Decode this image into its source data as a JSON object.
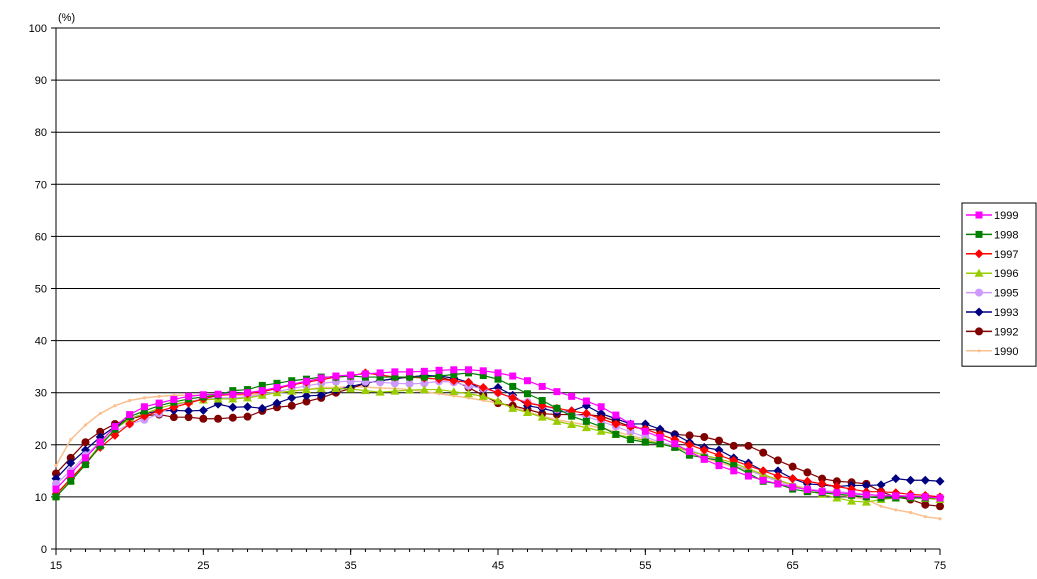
{
  "chart_data": {
    "type": "line",
    "y_unit": "(%)",
    "xlim": [
      15,
      75
    ],
    "ylim": [
      0,
      100
    ],
    "x_ticks": [
      15,
      25,
      35,
      45,
      55,
      65,
      75
    ],
    "y_ticks": [
      0,
      10,
      20,
      30,
      40,
      50,
      60,
      70,
      80,
      90,
      100
    ],
    "grid": "horizontal",
    "legend_position": "right",
    "x": [
      15,
      16,
      17,
      18,
      19,
      20,
      21,
      22,
      23,
      24,
      25,
      26,
      27,
      28,
      29,
      30,
      31,
      32,
      33,
      34,
      35,
      36,
      37,
      38,
      39,
      40,
      41,
      42,
      43,
      44,
      45,
      46,
      47,
      48,
      49,
      50,
      51,
      52,
      53,
      54,
      55,
      56,
      57,
      58,
      59,
      60,
      61,
      62,
      63,
      64,
      65,
      66,
      67,
      68,
      69,
      70,
      71,
      72,
      73,
      74,
      75
    ],
    "series": [
      {
        "name": "1999",
        "color": "#ff00ff",
        "marker": "square",
        "values": [
          11.5,
          14.5,
          17.5,
          20.5,
          23.5,
          25.8,
          27.3,
          28.0,
          28.7,
          29.3,
          29.6,
          29.7,
          29.7,
          30.0,
          30.4,
          31.0,
          31.6,
          32.2,
          32.8,
          33.2,
          33.4,
          33.6,
          33.8,
          34.0,
          34.0,
          34.1,
          34.3,
          34.4,
          34.4,
          34.2,
          33.8,
          33.2,
          32.3,
          31.2,
          30.2,
          29.3,
          28.4,
          27.3,
          25.7,
          24.0,
          22.6,
          21.4,
          20.2,
          18.7,
          17.2,
          16.0,
          15.0,
          14.0,
          13.2,
          12.5,
          11.9,
          11.4,
          11.0,
          10.8,
          10.6,
          10.4,
          10.3,
          10.2,
          10.1,
          10.0,
          9.8
        ]
      },
      {
        "name": "1998",
        "color": "#008000",
        "marker": "square",
        "values": [
          10.0,
          13.0,
          16.2,
          19.8,
          23.0,
          25.4,
          26.5,
          27.5,
          28.2,
          28.8,
          29.2,
          29.5,
          30.4,
          30.6,
          31.4,
          31.8,
          32.3,
          32.6,
          33.0,
          33.0,
          33.2,
          33.0,
          33.0,
          33.0,
          33.0,
          33.0,
          33.2,
          33.5,
          33.8,
          33.3,
          32.6,
          31.2,
          29.8,
          28.5,
          27.0,
          25.5,
          24.5,
          23.5,
          22.0,
          21.0,
          20.5,
          20.2,
          19.5,
          18.0,
          17.5,
          17.0,
          16.0,
          14.5,
          13.0,
          12.5,
          11.5,
          11.0,
          10.8,
          10.5,
          10.3,
          10.0,
          9.8,
          9.8,
          9.8,
          9.8,
          9.8
        ]
      },
      {
        "name": "1997",
        "color": "#ff0000",
        "marker": "diamond",
        "values": [
          10.5,
          13.5,
          16.5,
          19.5,
          21.8,
          24.0,
          25.5,
          26.5,
          27.2,
          28.0,
          28.8,
          29.5,
          29.7,
          29.8,
          30.2,
          30.8,
          31.5,
          32.0,
          32.5,
          33.0,
          33.2,
          33.8,
          33.4,
          33.0,
          33.0,
          32.8,
          32.6,
          32.3,
          32.0,
          31.0,
          30.0,
          29.0,
          28.0,
          27.5,
          27.0,
          26.5,
          26.0,
          25.0,
          24.0,
          23.5,
          23.0,
          22.0,
          21.0,
          20.0,
          19.0,
          18.0,
          17.0,
          16.0,
          15.0,
          14.0,
          13.5,
          13.0,
          12.5,
          12.0,
          11.5,
          11.0,
          11.0,
          10.8,
          10.5,
          10.3,
          10.0
        ]
      },
      {
        "name": "1996",
        "color": "#99cc00",
        "marker": "triangle",
        "values": [
          10.2,
          13.2,
          16.5,
          20.0,
          23.0,
          25.0,
          26.0,
          27.0,
          27.8,
          28.3,
          28.6,
          28.8,
          28.8,
          29.0,
          29.5,
          30.0,
          30.3,
          30.6,
          30.8,
          30.8,
          30.7,
          30.4,
          30.1,
          30.3,
          30.5,
          30.6,
          30.6,
          30.2,
          29.8,
          29.3,
          28.4,
          27.0,
          26.2,
          25.3,
          24.5,
          23.9,
          23.3,
          22.6,
          22.0,
          21.4,
          20.8,
          20.2,
          19.6,
          18.8,
          18.0,
          17.3,
          16.5,
          15.4,
          14.3,
          13.3,
          12.3,
          11.2,
          10.5,
          9.8,
          9.2,
          9.0,
          9.5,
          9.8,
          9.8,
          9.7,
          9.5
        ]
      },
      {
        "name": "1995",
        "color": "#cc99ff",
        "marker": "circle",
        "values": [
          12.5,
          15.0,
          18.0,
          20.5,
          22.5,
          24.0,
          24.8,
          26.0,
          27.5,
          28.3,
          28.8,
          29.0,
          29.0,
          29.2,
          29.6,
          30.2,
          30.8,
          31.3,
          31.8,
          32.1,
          32.2,
          32.1,
          32.0,
          31.8,
          31.7,
          31.8,
          32.2,
          32.0,
          31.3,
          30.8,
          30.0,
          29.0,
          28.2,
          27.5,
          26.8,
          26.0,
          25.4,
          24.5,
          23.5,
          22.5,
          21.5,
          20.5,
          19.8,
          19.0,
          18.0,
          17.0,
          16.0,
          15.2,
          14.0,
          13.0,
          12.0,
          11.5,
          11.2,
          11.0,
          10.8,
          10.5,
          10.3,
          10.3,
          10.2,
          10.0,
          9.8
        ]
      },
      {
        "name": "1993",
        "color": "#000080",
        "marker": "diamond",
        "values": [
          13.5,
          16.5,
          19.0,
          21.5,
          23.5,
          25.0,
          26.0,
          26.5,
          26.6,
          26.5,
          26.6,
          27.8,
          27.2,
          27.3,
          27.0,
          28.0,
          29.0,
          29.4,
          29.5,
          30.5,
          31.2,
          31.8,
          32.3,
          32.7,
          33.0,
          33.3,
          33.2,
          32.8,
          32.0,
          30.5,
          31.0,
          29.5,
          27.5,
          27.0,
          26.3,
          26.5,
          27.5,
          26.0,
          25.0,
          24.0,
          24.0,
          23.0,
          22.0,
          20.5,
          19.5,
          19.0,
          17.5,
          16.5,
          15.0,
          15.0,
          13.5,
          12.5,
          12.3,
          12.0,
          12.2,
          12.2,
          12.3,
          13.5,
          13.2,
          13.2,
          13.0
        ]
      },
      {
        "name": "1992",
        "color": "#800000",
        "marker": "circle",
        "values": [
          14.5,
          17.5,
          20.5,
          22.5,
          24.0,
          25.0,
          25.6,
          25.8,
          25.3,
          25.3,
          25.0,
          25.0,
          25.2,
          25.4,
          26.5,
          27.2,
          27.5,
          28.3,
          29.0,
          30.0,
          30.8,
          31.8,
          32.3,
          32.7,
          33.0,
          33.3,
          33.0,
          32.3,
          31.0,
          29.5,
          28.0,
          27.5,
          26.8,
          26.0,
          25.8,
          25.8,
          25.8,
          25.5,
          24.5,
          23.5,
          23.0,
          22.8,
          22.0,
          21.8,
          21.5,
          20.8,
          19.8,
          19.8,
          18.5,
          17.0,
          15.8,
          14.7,
          13.5,
          13.0,
          12.8,
          12.5,
          11.0,
          10.0,
          9.5,
          8.5,
          8.2
        ]
      },
      {
        "name": "1990",
        "color": "#fac090",
        "marker": "dot",
        "values": [
          16.0,
          21.0,
          23.8,
          26.0,
          27.5,
          28.5,
          29.0,
          29.3,
          29.5,
          29.5,
          29.5,
          29.5,
          29.5,
          29.5,
          29.8,
          30.0,
          30.3,
          30.6,
          31.0,
          31.0,
          31.2,
          31.1,
          30.9,
          30.8,
          30.6,
          30.2,
          29.8,
          29.4,
          29.0,
          28.5,
          28.0,
          27.3,
          26.3,
          25.5,
          24.8,
          24.3,
          23.8,
          23.2,
          22.5,
          21.8,
          21.0,
          20.3,
          19.5,
          18.6,
          17.5,
          16.6,
          15.8,
          15.0,
          14.2,
          13.2,
          12.3,
          11.6,
          11.0,
          10.5,
          10.0,
          9.5,
          8.2,
          7.5,
          7.0,
          6.2,
          5.8
        ]
      }
    ]
  }
}
